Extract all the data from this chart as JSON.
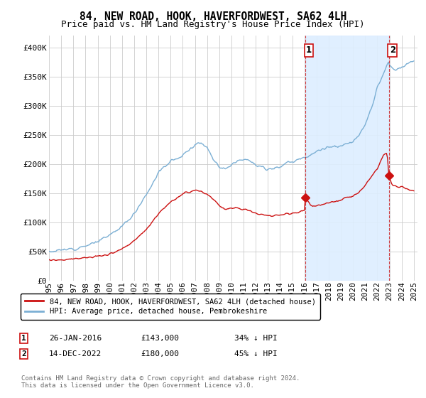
{
  "title": "84, NEW ROAD, HOOK, HAVERFORDWEST, SA62 4LH",
  "subtitle": "Price paid vs. HM Land Registry's House Price Index (HPI)",
  "ylim": [
    0,
    420000
  ],
  "yticks": [
    0,
    50000,
    100000,
    150000,
    200000,
    250000,
    300000,
    350000,
    400000
  ],
  "ytick_labels": [
    "£0",
    "£50K",
    "£100K",
    "£150K",
    "£200K",
    "£250K",
    "£300K",
    "£350K",
    "£400K"
  ],
  "hpi_color": "#7bafd4",
  "price_color": "#cc1111",
  "shade_color": "#ddeeff",
  "sale1_year": 2016.07,
  "sale1_price": 143000,
  "sale2_year": 2022.95,
  "sale2_price": 180000,
  "legend_line1": "84, NEW ROAD, HOOK, HAVERFORDWEST, SA62 4LH (detached house)",
  "legend_line2": "HPI: Average price, detached house, Pembrokeshire",
  "grid_color": "#cccccc",
  "background_color": "#ffffff",
  "title_fontsize": 10.5,
  "subtitle_fontsize": 9,
  "tick_fontsize": 8
}
